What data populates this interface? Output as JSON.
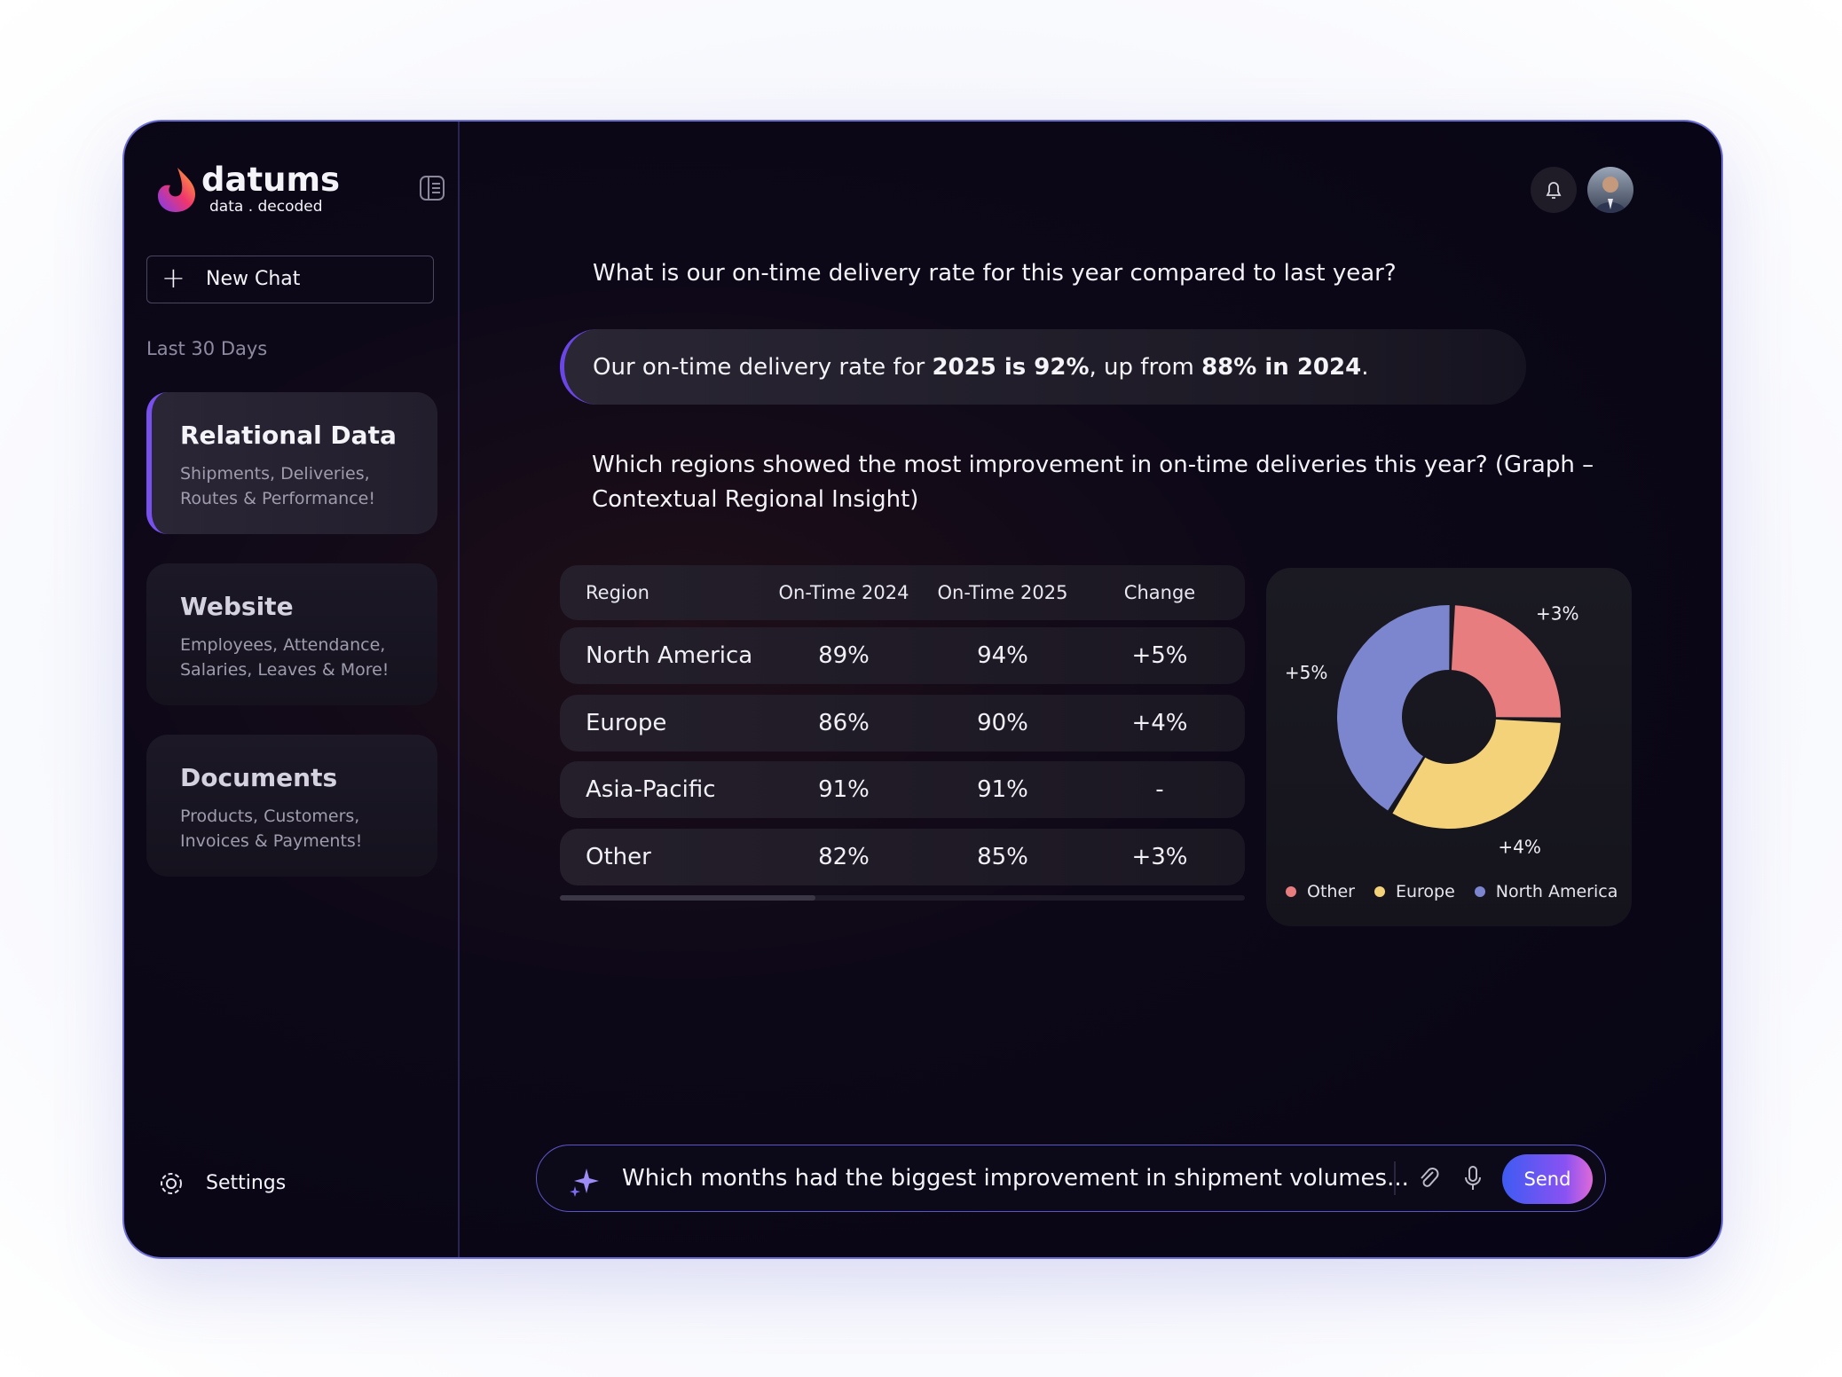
{
  "brand": {
    "name": "datums",
    "tagline": "data . decoded"
  },
  "sidebar": {
    "new_chat": "New Chat",
    "section_label": "Last 30 Days",
    "items": [
      {
        "title": "Relational Data",
        "description": [
          "Shipments, Deliveries,",
          "Routes & Performance!"
        ],
        "active": true
      },
      {
        "title": "Website",
        "description": [
          "Employees, Attendance,",
          "Salaries, Leaves & More!"
        ],
        "active": false
      },
      {
        "title": "Documents",
        "description": [
          "Products, Customers,",
          "Invoices & Payments!"
        ],
        "active": false
      }
    ],
    "settings": "Settings"
  },
  "conversation": {
    "question_1": "What is our on-time delivery rate for this year compared to last year?",
    "answer_parts": [
      {
        "text": "Our on-time delivery rate for ",
        "bold": false
      },
      {
        "text": "2025 is 92%",
        "bold": true
      },
      {
        "text": ", up from ",
        "bold": false
      },
      {
        "text": "88% in 2024",
        "bold": true
      },
      {
        "text": ".",
        "bold": false
      }
    ],
    "question_2": [
      "Which regions showed the most improvement in on-time deliveries this year? (Graph –",
      "Contextual Regional Insight)"
    ]
  },
  "table": {
    "headers": [
      "Region",
      "On-Time 2024",
      "On-Time 2025",
      "Change"
    ],
    "rows": [
      [
        "North America",
        "89%",
        "94%",
        "+5%"
      ],
      [
        "Europe",
        "86%",
        "90%",
        "+4%"
      ],
      [
        "Asia-Pacific",
        "91%",
        "91%",
        "-"
      ],
      [
        "Other",
        "82%",
        "85%",
        "+3%"
      ]
    ]
  },
  "chart_data": {
    "type": "donut",
    "categories": [
      "Other",
      "Europe",
      "North America"
    ],
    "values": [
      3,
      4,
      5
    ],
    "value_labels": [
      "+3%",
      "+4%",
      "+5%"
    ],
    "colors": [
      "#e77d7f",
      "#f4d27a",
      "#7c86cf"
    ]
  },
  "input": {
    "placeholder": "Which months had the biggest improvement in shipment volumes...",
    "send": "Send"
  }
}
